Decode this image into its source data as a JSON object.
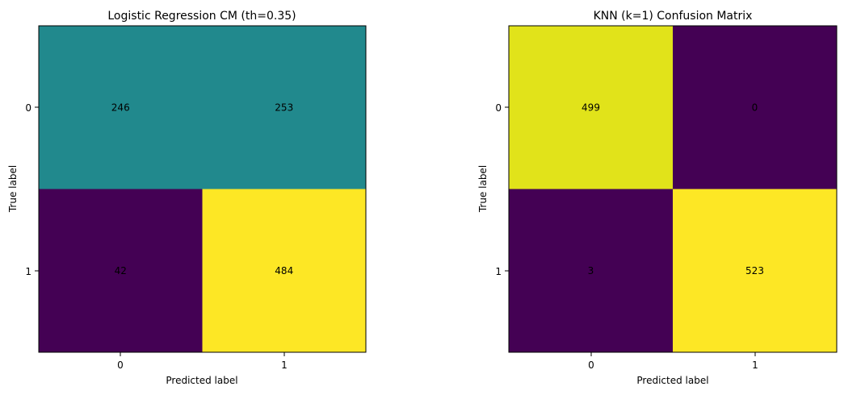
{
  "chart_data": [
    {
      "type": "heatmap",
      "title": "Logistic Regression CM (th=0.35)",
      "xlabel": "Predicted label",
      "ylabel": "True label",
      "x_ticks": [
        "0",
        "1"
      ],
      "y_ticks": [
        "0",
        "1"
      ],
      "values": [
        [
          246,
          253
        ],
        [
          42,
          484
        ]
      ],
      "colors": [
        [
          "#21898d",
          "#21898d"
        ],
        [
          "#440154",
          "#fde725"
        ]
      ],
      "colormap": "viridis",
      "grid": false
    },
    {
      "type": "heatmap",
      "title": "KNN (k=1) Confusion Matrix",
      "xlabel": "Predicted label",
      "ylabel": "True label",
      "x_ticks": [
        "0",
        "1"
      ],
      "y_ticks": [
        "0",
        "1"
      ],
      "values": [
        [
          499,
          0
        ],
        [
          3,
          523
        ]
      ],
      "colors": [
        [
          "#e1e31a",
          "#440154"
        ],
        [
          "#440154",
          "#fde725"
        ]
      ],
      "colormap": "viridis",
      "grid": false
    }
  ]
}
